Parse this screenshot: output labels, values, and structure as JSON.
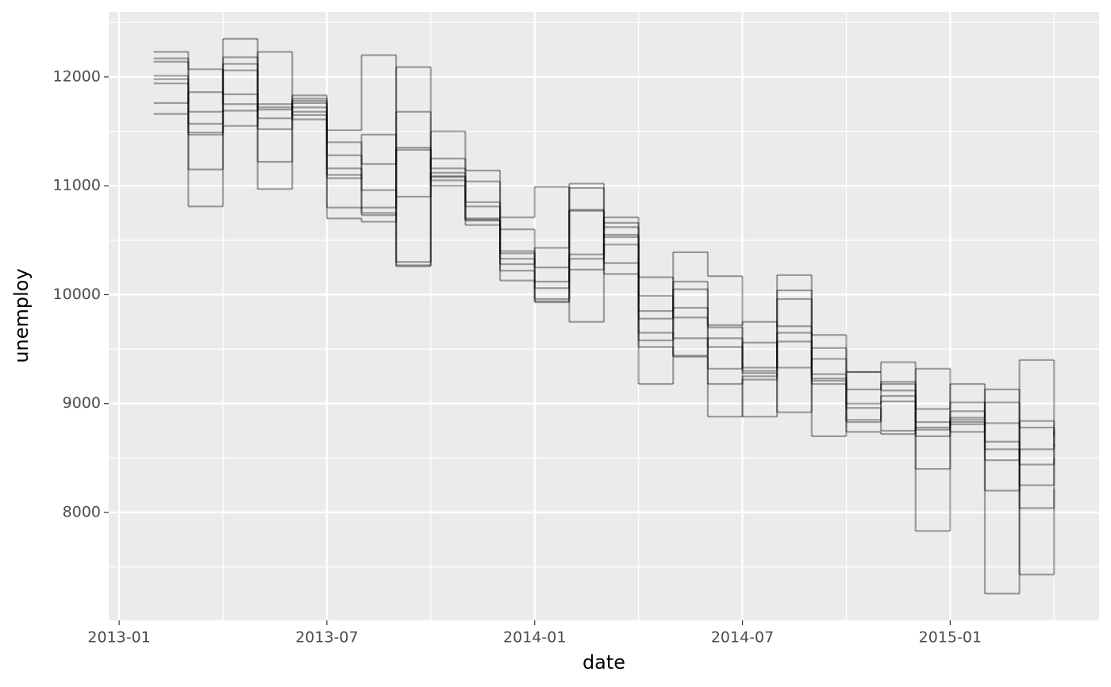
{
  "chart_data": {
    "type": "step",
    "x_label": "date",
    "y_label": "unemploy",
    "x": [
      "2013-02",
      "2013-03",
      "2013-04",
      "2013-05",
      "2013-06",
      "2013-07",
      "2013-08",
      "2013-09",
      "2013-10",
      "2013-11",
      "2013-12",
      "2014-01",
      "2014-02",
      "2014-03",
      "2014-04",
      "2014-05",
      "2014-06",
      "2014-07",
      "2014-08",
      "2014-09",
      "2014-10",
      "2014-11",
      "2014-12",
      "2015-01",
      "2015-02",
      "2015-03",
      "2015-04"
    ],
    "xlim": [
      "2013-02",
      "2015-04"
    ],
    "xticks": [
      "2013-01",
      "2013-07",
      "2014-01",
      "2014-07",
      "2015-01"
    ],
    "ylim": [
      7009,
      12597
    ],
    "yticks": [
      8000,
      9000,
      10000,
      11000,
      12000
    ],
    "grid": true,
    "alpha": 0.35,
    "series": [
      {
        "color": "#000000",
        "values": [
          11980,
          11470,
          12180,
          11220,
          11760,
          11280,
          10960,
          10260,
          11120,
          10850,
          10130,
          10120,
          10230,
          10550,
          9780,
          10050,
          9520,
          9280,
          8920,
          9410,
          8830,
          9020,
          8400,
          8830,
          8480,
          8580,
          8900
        ]
      },
      {
        "color": "#000000",
        "values": [
          12230,
          11150,
          12350,
          10970,
          11830,
          11510,
          12200,
          10270,
          11500,
          11140,
          10710,
          10990,
          9750,
          10710,
          9180,
          10390,
          10170,
          8880,
          10180,
          8700,
          9290,
          9380,
          7830,
          9180,
          7255,
          9400,
          8900
        ]
      },
      {
        "color": "#000000",
        "values": [
          11660,
          10810,
          11550,
          12230,
          11610,
          10700,
          10670,
          12090,
          11000,
          10640,
          10600,
          9930,
          11020,
          10190,
          10160,
          9430,
          8880,
          9220,
          9960,
          9630,
          8740,
          8720,
          9320,
          8740,
          9130,
          7430,
          8220
        ]
      },
      {
        "color": "#000000",
        "values": [
          12170,
          12070,
          11750,
          11700,
          11720,
          11100,
          10730,
          11680,
          11050,
          10700,
          10280,
          10430,
          10770,
          10620,
          9580,
          10120,
          9720,
          9750,
          9710,
          9180,
          9130,
          9200,
          8950,
          9010,
          8650,
          8040,
          8630
        ]
      },
      {
        "color": "#000000",
        "values": [
          11760,
          11860,
          11840,
          11520,
          11680,
          11070,
          11470,
          10900,
          11250,
          10810,
          10330,
          10250,
          10370,
          10660,
          9990,
          9790,
          9320,
          9560,
          9330,
          9510,
          9290,
          9120,
          8760,
          8930,
          8200,
          8840,
          8600
        ]
      },
      {
        "color": "#000000",
        "values": [
          12010,
          11570,
          12060,
          11620,
          11800,
          11400,
          11200,
          11330,
          11160,
          11040,
          10400,
          9960,
          10780,
          10290,
          9650,
          9600,
          9180,
          9250,
          9650,
          9210,
          8850,
          9180,
          8700,
          8870,
          9010,
          8440,
          8500
        ]
      },
      {
        "color": "#000000",
        "values": [
          11940,
          11680,
          11690,
          11750,
          11650,
          11160,
          10800,
          11350,
          11080,
          10690,
          10380,
          9940,
          10330,
          10460,
          9850,
          9880,
          9700,
          9300,
          10040,
          9270,
          9000,
          9070,
          8830,
          8810,
          8580,
          8250,
          8760
        ]
      },
      {
        "color": "#000000",
        "values": [
          12140,
          11490,
          12120,
          11720,
          11780,
          10800,
          10750,
          10300,
          11090,
          10680,
          10220,
          10060,
          10980,
          10530,
          9520,
          9440,
          9600,
          9330,
          9570,
          9230,
          8960,
          8750,
          8780,
          8850,
          8820,
          8780,
          8700
        ]
      }
    ]
  }
}
